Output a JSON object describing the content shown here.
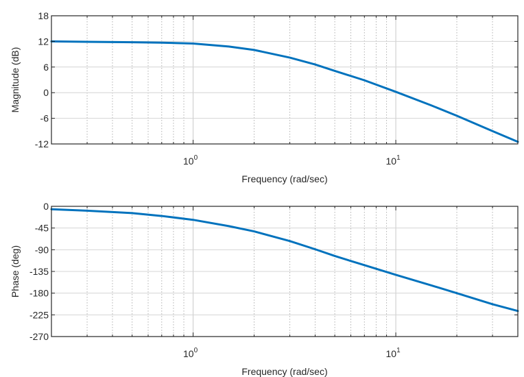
{
  "chart_data": [
    {
      "type": "line",
      "ylabel": "Magnitude (dB)",
      "xlabel": "Frequency (rad/sec)",
      "xscale": "log",
      "xlim": [
        0.2,
        40
      ],
      "ylim": [
        -12,
        18
      ],
      "grid": true,
      "yticks": [
        -12,
        -6,
        0,
        6,
        12,
        18
      ],
      "ytick_labels": [
        "-12",
        "-6",
        "0",
        "6",
        "12",
        "18"
      ],
      "xticks": [
        1,
        10
      ],
      "xtick_labels": [
        {
          "base": "10",
          "exp": "0"
        },
        {
          "base": "10",
          "exp": "1"
        }
      ],
      "series": [
        {
          "color": "#0072BD",
          "x": [
            0.2,
            0.3,
            0.5,
            0.7,
            1,
            1.5,
            2,
            3,
            4,
            5,
            7,
            10,
            15,
            20,
            30,
            40
          ],
          "values": [
            12.0,
            11.9,
            11.8,
            11.7,
            11.5,
            10.8,
            10.0,
            8.2,
            6.6,
            5.1,
            2.9,
            0.2,
            -3.0,
            -5.4,
            -9.0,
            -11.5
          ]
        }
      ]
    },
    {
      "type": "line",
      "ylabel": "Phase (deg)",
      "xlabel": "Frequency (rad/sec)",
      "xscale": "log",
      "xlim": [
        0.2,
        40
      ],
      "ylim": [
        -270,
        0
      ],
      "grid": true,
      "yticks": [
        -270,
        -225,
        -180,
        -135,
        -90,
        -45,
        0
      ],
      "ytick_labels": [
        "-270",
        "-225",
        "-180",
        "-135",
        "-90",
        "-45",
        "0"
      ],
      "xticks": [
        1,
        10
      ],
      "xtick_labels": [
        {
          "base": "10",
          "exp": "0"
        },
        {
          "base": "10",
          "exp": "1"
        }
      ],
      "series": [
        {
          "color": "#0072BD",
          "x": [
            0.2,
            0.3,
            0.5,
            0.7,
            1,
            1.5,
            2,
            3,
            4,
            5,
            7,
            10,
            15,
            20,
            30,
            40
          ],
          "values": [
            -6,
            -9,
            -14,
            -20,
            -28,
            -41,
            -52,
            -72,
            -89,
            -103,
            -122,
            -142,
            -164,
            -180,
            -203,
            -217
          ]
        }
      ]
    }
  ]
}
